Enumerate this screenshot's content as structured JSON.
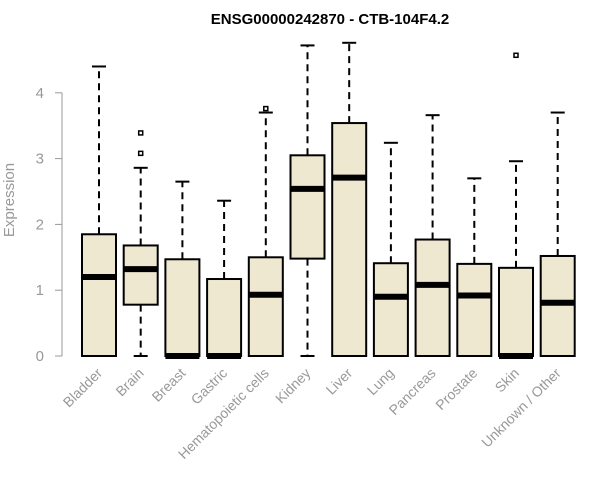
{
  "chart_data": {
    "type": "boxplot",
    "title": "ENSG00000242870 - CTB-104F4.2",
    "xlabel": "",
    "ylabel": "Expression",
    "ylim": [
      0,
      4.85
    ],
    "yticks": [
      0,
      1,
      2,
      3,
      4
    ],
    "grid": false,
    "box_fill": "#efe8d0",
    "categories": [
      "Bladder",
      "Brain",
      "Breast",
      "Gastric",
      "Hematopoietic cells",
      "Kidney",
      "Liver",
      "Lung",
      "Pancreas",
      "Prostate",
      "Skin",
      "Unknown / Other"
    ],
    "boxes": [
      {
        "min": 0,
        "q1": 0,
        "median": 1.2,
        "q3": 1.85,
        "max": 4.4,
        "outliers": []
      },
      {
        "min": 0,
        "q1": 0.78,
        "median": 1.32,
        "q3": 1.68,
        "max": 2.86,
        "outliers": [
          3.08,
          3.39
        ]
      },
      {
        "min": 0,
        "q1": 0,
        "median": 0,
        "q3": 1.47,
        "max": 2.65,
        "outliers": []
      },
      {
        "min": 0,
        "q1": 0,
        "median": 0,
        "q3": 1.17,
        "max": 2.36,
        "outliers": []
      },
      {
        "min": 0,
        "q1": 0,
        "median": 0.93,
        "q3": 1.5,
        "max": 3.7,
        "outliers": [
          3.76
        ]
      },
      {
        "min": 0,
        "q1": 1.48,
        "median": 2.54,
        "q3": 3.05,
        "max": 4.72,
        "outliers": []
      },
      {
        "min": 0,
        "q1": 0,
        "median": 2.71,
        "q3": 3.54,
        "max": 4.76,
        "outliers": []
      },
      {
        "min": 0,
        "q1": 0,
        "median": 0.9,
        "q3": 1.41,
        "max": 3.24,
        "outliers": []
      },
      {
        "min": 0,
        "q1": 0,
        "median": 1.08,
        "q3": 1.77,
        "max": 3.66,
        "outliers": []
      },
      {
        "min": 0,
        "q1": 0,
        "median": 0.92,
        "q3": 1.4,
        "max": 2.7,
        "outliers": []
      },
      {
        "min": 0,
        "q1": 0,
        "median": 0,
        "q3": 1.34,
        "max": 2.96,
        "outliers": [
          4.57
        ]
      },
      {
        "min": 0,
        "q1": 0,
        "median": 0.81,
        "q3": 1.52,
        "max": 3.7,
        "outliers": []
      }
    ]
  }
}
